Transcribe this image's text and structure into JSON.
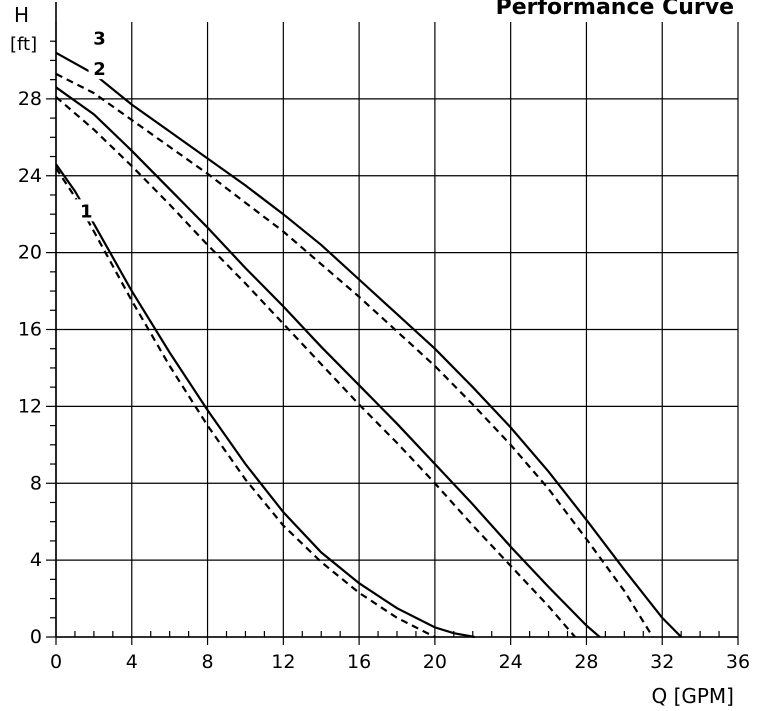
{
  "chart_data": {
    "type": "line",
    "title": "Performance Curve",
    "xlabel": "Q [GPM]",
    "ylabel_symbol": "H",
    "ylabel_unit": "[ft]",
    "xlim": [
      0,
      36
    ],
    "ylim": [
      0,
      32
    ],
    "xticks": [
      0,
      4,
      8,
      12,
      16,
      20,
      24,
      28,
      32,
      36
    ],
    "yticks": [
      0,
      4,
      8,
      12,
      16,
      20,
      24,
      28
    ],
    "grid": true,
    "series": [
      {
        "name": "1",
        "style": "solid",
        "x": [
          0,
          1,
          2,
          4,
          6,
          8,
          10,
          12,
          14,
          16,
          18,
          20,
          21,
          22.1
        ],
        "y": [
          24.6,
          23.2,
          21.5,
          18,
          14.8,
          11.8,
          9,
          6.5,
          4.4,
          2.8,
          1.5,
          0.5,
          0.2,
          0
        ]
      },
      {
        "name": "1",
        "style": "dashed",
        "x": [
          0,
          1,
          2,
          4,
          6,
          8,
          10,
          12,
          14,
          16,
          18,
          19,
          20
        ],
        "y": [
          24.4,
          22.9,
          21.1,
          17.5,
          14.1,
          11,
          8.2,
          5.8,
          3.9,
          2.3,
          1,
          0.5,
          0
        ]
      },
      {
        "name": "2",
        "style": "solid",
        "x": [
          0,
          2,
          4,
          6,
          8,
          10,
          12,
          14,
          16,
          18,
          20,
          22,
          24,
          26,
          28,
          28.7
        ],
        "y": [
          28.6,
          27.2,
          25.3,
          23.3,
          21.3,
          19.2,
          17.2,
          15.1,
          13.1,
          11.1,
          9,
          6.9,
          4.7,
          2.6,
          0.6,
          0
        ]
      },
      {
        "name": "2",
        "style": "dashed",
        "x": [
          0,
          2,
          4,
          6,
          8,
          10,
          12,
          14,
          16,
          18,
          20,
          22,
          24,
          26,
          27.4
        ],
        "y": [
          28.1,
          26.4,
          24.5,
          22.5,
          20.4,
          18.4,
          16.3,
          14.2,
          12.1,
          10.1,
          8,
          5.8,
          3.7,
          1.6,
          0
        ]
      },
      {
        "name": "3",
        "style": "solid",
        "x": [
          0,
          2,
          4,
          6,
          8,
          10,
          12,
          14,
          16,
          18,
          20,
          22,
          24,
          26,
          28,
          30,
          32,
          33
        ],
        "y": [
          30.4,
          29.3,
          27.7,
          26.3,
          24.9,
          23.5,
          22,
          20.4,
          18.6,
          16.8,
          15,
          13,
          10.9,
          8.6,
          6.1,
          3.5,
          1,
          0
        ]
      },
      {
        "name": "3",
        "style": "dashed",
        "x": [
          0,
          2,
          4,
          6,
          8,
          10,
          12,
          14,
          16,
          18,
          20,
          22,
          24,
          26,
          28,
          30,
          31.5
        ],
        "y": [
          29.3,
          28.3,
          26.9,
          25.5,
          24.1,
          22.6,
          21.1,
          19.4,
          17.7,
          15.9,
          14.1,
          12.1,
          10,
          7.7,
          5.1,
          2.4,
          0
        ]
      }
    ],
    "annotations": [
      {
        "text": "1",
        "x": 1.6,
        "y": 22.2
      },
      {
        "text": "2",
        "x": 2.3,
        "y": 29.6
      },
      {
        "text": "3",
        "x": 2.3,
        "y": 31.2
      }
    ]
  }
}
